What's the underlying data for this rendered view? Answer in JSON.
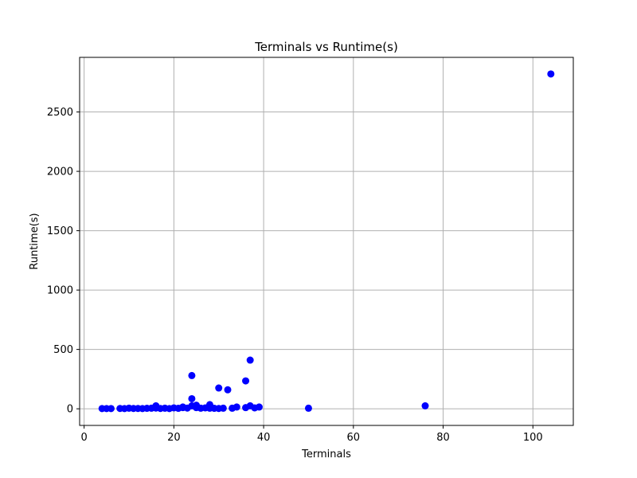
{
  "chart_data": {
    "type": "scatter",
    "title": "Terminals vs Runtime(s)",
    "xlabel": "Terminals",
    "ylabel": "Runtime(s)",
    "xlim": [
      -1.0,
      109.0
    ],
    "ylim": [
      -140,
      2960
    ],
    "xticks": [
      0,
      20,
      40,
      60,
      80,
      100
    ],
    "yticks": [
      0,
      500,
      1000,
      1500,
      2000,
      2500
    ],
    "grid": true,
    "marker_color": "#0000ff",
    "series": [
      {
        "x": [
          4,
          5,
          6,
          8,
          9,
          10,
          11,
          12,
          13,
          14,
          15,
          16,
          16,
          17,
          18,
          19,
          20,
          21,
          22,
          22,
          23,
          24,
          24,
          24,
          25,
          25,
          26,
          27,
          28,
          28,
          29,
          30,
          30,
          31,
          32,
          33,
          34,
          36,
          36,
          37,
          37,
          38,
          39,
          50,
          76,
          104
        ],
        "y": [
          2,
          2,
          2,
          3,
          2,
          5,
          3,
          3,
          2,
          4,
          5,
          25,
          6,
          3,
          5,
          2,
          8,
          4,
          10,
          15,
          6,
          280,
          85,
          25,
          10,
          30,
          5,
          8,
          35,
          5,
          4,
          175,
          3,
          5,
          160,
          5,
          15,
          235,
          10,
          410,
          25,
          8,
          15,
          5,
          25,
          2820
        ]
      }
    ]
  }
}
